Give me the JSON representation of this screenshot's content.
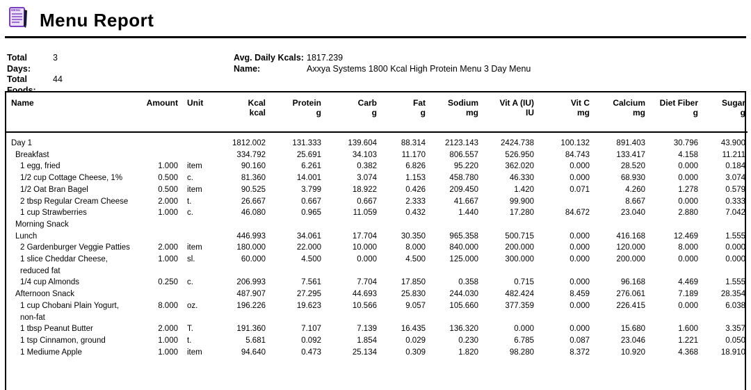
{
  "header": {
    "title": "Menu Report"
  },
  "summary": {
    "total_days_label": "Total Days:",
    "total_days": "3",
    "total_foods_label": "Total Foods:",
    "total_foods": "44",
    "avg_daily_kcals_label": "Avg. Daily Kcals:",
    "avg_daily_kcals": "1817.239",
    "name_label": "Name:",
    "name": "Axxya Systems 1800 Kcal High Protein Menu 3 Day Menu"
  },
  "icon_colors": {
    "purple": "#7a3ec0",
    "fill": "#ece0f8",
    "pen": "#1a1a2e"
  },
  "table": {
    "columns": [
      {
        "label": "Name",
        "unit": ""
      },
      {
        "label": "Amount",
        "unit": ""
      },
      {
        "label": "Unit",
        "unit": ""
      },
      {
        "label": "Kcal",
        "unit": "kcal"
      },
      {
        "label": "Protein",
        "unit": "g"
      },
      {
        "label": "Carb",
        "unit": "g"
      },
      {
        "label": "Fat",
        "unit": "g"
      },
      {
        "label": "Sodium",
        "unit": "mg"
      },
      {
        "label": "Vit A (IU)",
        "unit": "IU"
      },
      {
        "label": "Vit C",
        "unit": "mg"
      },
      {
        "label": "Calcium",
        "unit": "mg"
      },
      {
        "label": "Diet Fiber",
        "unit": "g"
      },
      {
        "label": "Sugar",
        "unit": "g"
      }
    ],
    "rows": [
      {
        "name": "Day 1",
        "level": "day",
        "amount": "",
        "unit": "",
        "values": [
          "1812.002",
          "131.333",
          "139.604",
          "88.314",
          "2123.143",
          "2424.738",
          "100.132",
          "891.403",
          "30.796",
          "43.900"
        ]
      },
      {
        "name": "Breakfast",
        "level": "meal",
        "amount": "",
        "unit": "",
        "values": [
          "334.792",
          "25.691",
          "34.103",
          "11.170",
          "806.557",
          "526.950",
          "84.743",
          "133.417",
          "4.158",
          "11.211"
        ]
      },
      {
        "name": "1 egg, fried",
        "level": "food",
        "amount": "1.000",
        "unit": "item",
        "values": [
          "90.160",
          "6.261",
          "0.382",
          "6.826",
          "95.220",
          "362.020",
          "0.000",
          "28.520",
          "0.000",
          "0.184"
        ]
      },
      {
        "name": "1/2 cup Cottage Cheese, 1%",
        "level": "food",
        "amount": "0.500",
        "unit": "c.",
        "values": [
          "81.360",
          "14.001",
          "3.074",
          "1.153",
          "458.780",
          "46.330",
          "0.000",
          "68.930",
          "0.000",
          "3.074"
        ]
      },
      {
        "name": "1/2 Oat Bran Bagel",
        "level": "food",
        "amount": "0.500",
        "unit": "item",
        "values": [
          "90.525",
          "3.799",
          "18.922",
          "0.426",
          "209.450",
          "1.420",
          "0.071",
          "4.260",
          "1.278",
          "0.579"
        ]
      },
      {
        "name": "2 tbsp Regular Cream Cheese",
        "level": "food",
        "amount": "2.000",
        "unit": "t.",
        "values": [
          "26.667",
          "0.667",
          "0.667",
          "2.333",
          "41.667",
          "99.900",
          "",
          "8.667",
          "0.000",
          "0.333"
        ]
      },
      {
        "name": "1 cup Strawberries",
        "level": "food",
        "amount": "1.000",
        "unit": "c.",
        "values": [
          "46.080",
          "0.965",
          "11.059",
          "0.432",
          "1.440",
          "17.280",
          "84.672",
          "23.040",
          "2.880",
          "7.042"
        ]
      },
      {
        "name": "Morning Snack",
        "level": "meal",
        "amount": "",
        "unit": "",
        "values": [
          "",
          "",
          "",
          "",
          "",
          "",
          "",
          "",
          "",
          ""
        ]
      },
      {
        "name": "Lunch",
        "level": "meal",
        "amount": "",
        "unit": "",
        "values": [
          "446.993",
          "34.061",
          "17.704",
          "30.350",
          "965.358",
          "500.715",
          "0.000",
          "416.168",
          "12.469",
          "1.555"
        ]
      },
      {
        "name": "2 Gardenburger Veggie Patties",
        "level": "food",
        "amount": "2.000",
        "unit": "item",
        "values": [
          "180.000",
          "22.000",
          "10.000",
          "8.000",
          "840.000",
          "200.000",
          "0.000",
          "120.000",
          "8.000",
          "0.000"
        ]
      },
      {
        "name": "1 slice Cheddar Cheese, reduced fat",
        "level": "food",
        "amount": "1.000",
        "unit": "sl.",
        "values": [
          "60.000",
          "4.500",
          "0.000",
          "4.500",
          "125.000",
          "300.000",
          "0.000",
          "200.000",
          "0.000",
          "0.000"
        ]
      },
      {
        "name": "1/4 cup Almonds",
        "level": "food",
        "amount": "0.250",
        "unit": "c.",
        "values": [
          "206.993",
          "7.561",
          "7.704",
          "17.850",
          "0.358",
          "0.715",
          "0.000",
          "96.168",
          "4.469",
          "1.555"
        ]
      },
      {
        "name": "Afternoon Snack",
        "level": "meal",
        "amount": "",
        "unit": "",
        "values": [
          "487.907",
          "27.295",
          "44.693",
          "25.830",
          "244.030",
          "482.424",
          "8.459",
          "276.061",
          "7.189",
          "28.354"
        ]
      },
      {
        "name": "1 cup Chobani Plain Yogurt, non-fat",
        "level": "food",
        "amount": "8.000",
        "unit": "oz.",
        "values": [
          "196.226",
          "19.623",
          "10.566",
          "9.057",
          "105.660",
          "377.359",
          "0.000",
          "226.415",
          "0.000",
          "6.038"
        ]
      },
      {
        "name": "1 tbsp Peanut Butter",
        "level": "food",
        "amount": "2.000",
        "unit": "T.",
        "values": [
          "191.360",
          "7.107",
          "7.139",
          "16.435",
          "136.320",
          "0.000",
          "0.000",
          "15.680",
          "1.600",
          "3.357"
        ]
      },
      {
        "name": "1 tsp Cinnamon, ground",
        "level": "food",
        "amount": "1.000",
        "unit": "t.",
        "values": [
          "5.681",
          "0.092",
          "1.854",
          "0.029",
          "0.230",
          "6.785",
          "0.087",
          "23.046",
          "1.221",
          "0.050"
        ]
      },
      {
        "name": "1 Mediume Apple",
        "level": "food",
        "amount": "1.000",
        "unit": "item",
        "values": [
          "94.640",
          "0.473",
          "25.134",
          "0.309",
          "1.820",
          "98.280",
          "8.372",
          "10.920",
          "4.368",
          "18.910"
        ]
      }
    ]
  }
}
